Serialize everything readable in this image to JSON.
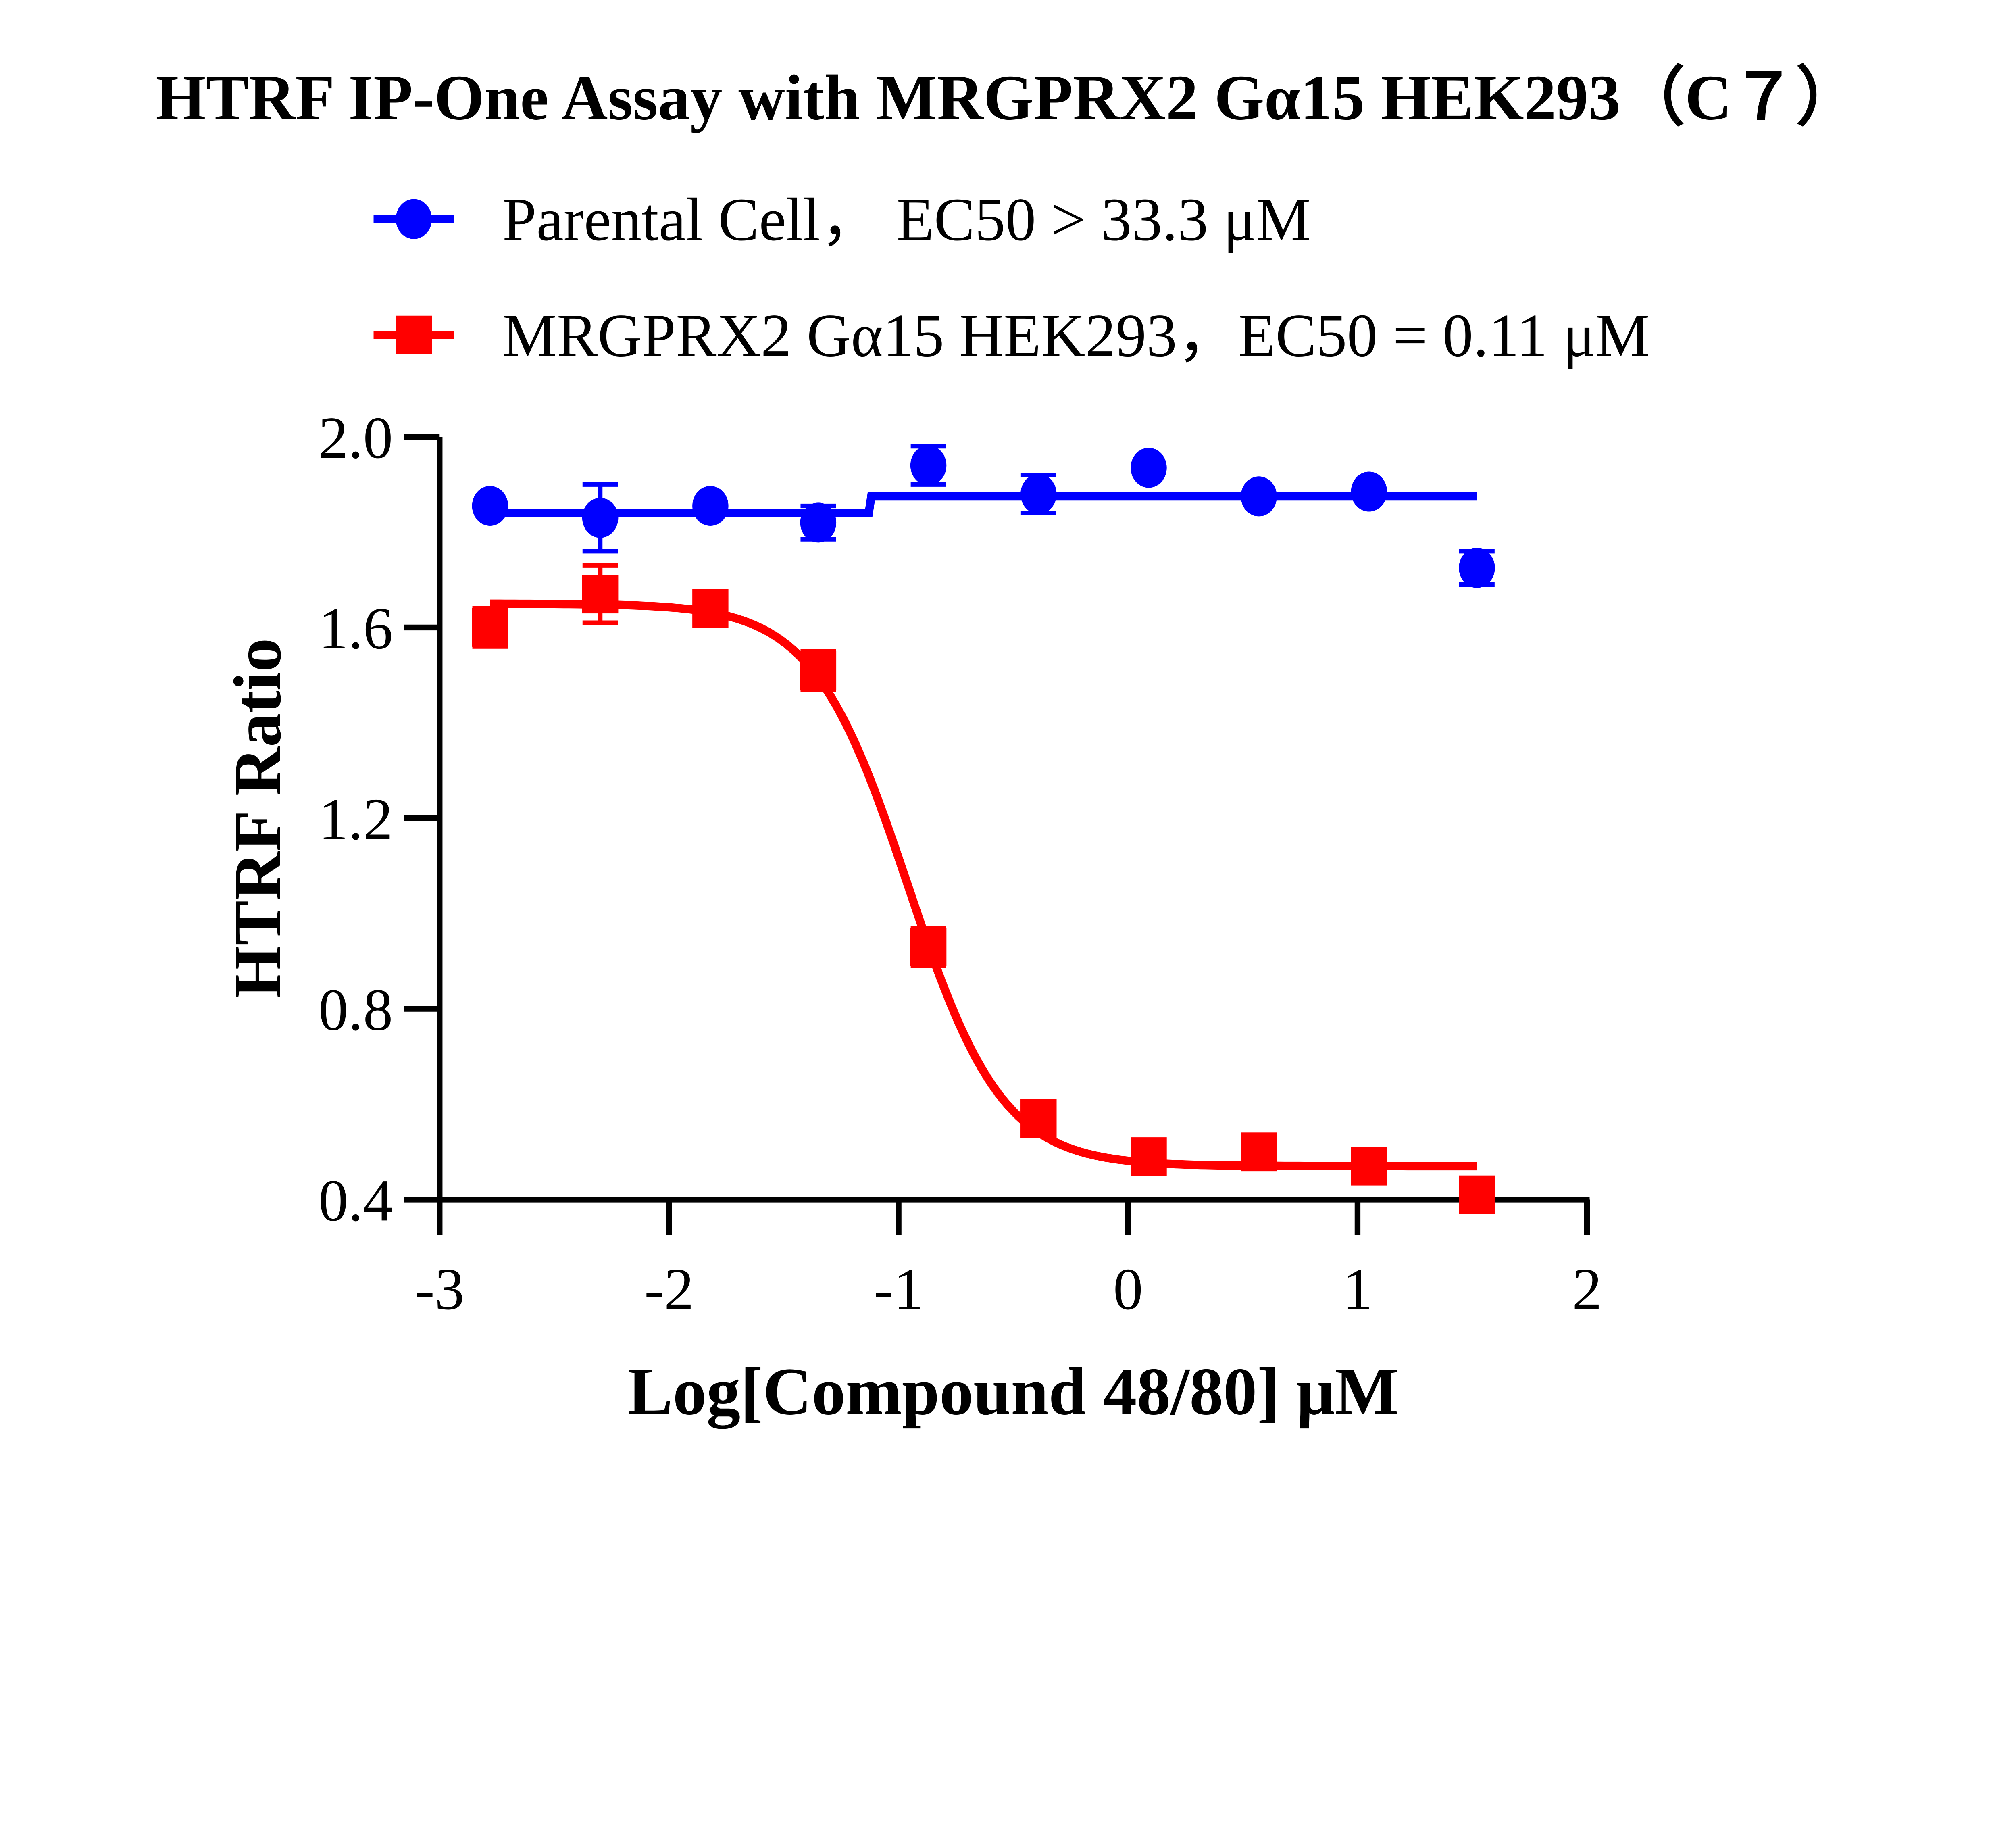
{
  "chart_data": {
    "type": "scatter",
    "title": "HTRF IP-One Assay with MRGPRX2 Gα15 HEK293（C７）",
    "xlabel": "Log[Compound 48/80] μM",
    "ylabel": "HTRF Ratio",
    "xlim": [
      -3,
      2
    ],
    "ylim": [
      0.4,
      2.0
    ],
    "xticks": [
      -3,
      -2,
      -1,
      0,
      1,
      2
    ],
    "xtick_labels": [
      "-3",
      "-2",
      "-1",
      "0",
      "1",
      "2"
    ],
    "yticks": [
      0.4,
      0.8,
      1.2,
      1.6,
      2.0
    ],
    "ytick_labels": [
      "0.4",
      "0.8",
      "1.2",
      "1.6",
      "2.0"
    ],
    "grid": false,
    "legend_position": "top",
    "series": [
      {
        "name": "Parental Cell，  EC50 > 33.3 μM",
        "color": "#0000ff",
        "marker": "circle",
        "x": [
          -2.78,
          -2.3,
          -1.82,
          -1.35,
          -0.87,
          -0.39,
          0.09,
          0.57,
          1.05,
          1.52
        ],
        "y": [
          1.855,
          1.83,
          1.855,
          1.82,
          1.94,
          1.88,
          1.935,
          1.875,
          1.885,
          1.725
        ],
        "error": [
          0,
          0.07,
          0,
          0.035,
          0.04,
          0.04,
          0,
          0,
          0,
          0.035
        ],
        "fit": {
          "type": "step",
          "low": 1.84,
          "high": 1.875,
          "step_x": -1.13
        }
      },
      {
        "name": "MRGPRX2 Gα15 HEK293，EC50 = 0.11 μM",
        "color": "#ff0000",
        "marker": "square",
        "x": [
          -2.78,
          -2.3,
          -1.82,
          -1.35,
          -0.87,
          -0.39,
          0.09,
          0.57,
          1.05,
          1.52
        ],
        "y": [
          1.6,
          1.67,
          1.64,
          1.51,
          0.93,
          0.57,
          0.49,
          0.5,
          0.47,
          0.41
        ],
        "error": [
          0.04,
          0.06,
          0,
          0.04,
          0.04,
          0,
          0,
          0,
          0,
          0
        ],
        "fit": {
          "type": "sigmoid",
          "top": 1.65,
          "bottom": 0.47,
          "logEC50": -0.96,
          "hill": 2.1
        }
      }
    ]
  }
}
